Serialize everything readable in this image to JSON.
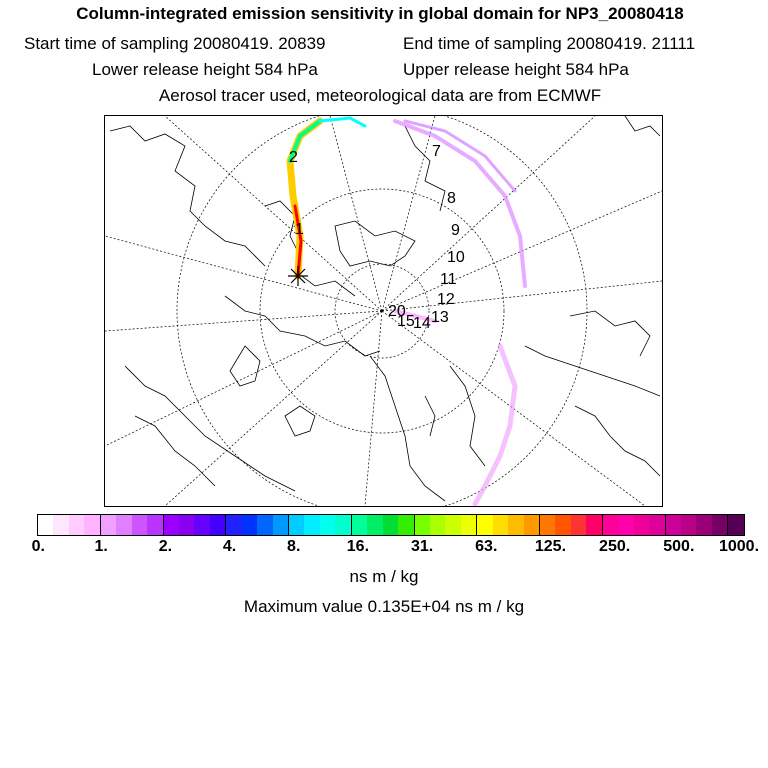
{
  "header": {
    "title": "Column-integrated emission sensitivity in global domain for NP3_20080418",
    "start_time": "Start time of sampling 20080419. 20839",
    "end_time": "End time of sampling 20080419. 21111",
    "lower_height": "Lower release height  584 hPa",
    "upper_height": "Upper release height  584 hPa",
    "tracer_info": "Aerosol tracer used, meteorological data are from ECMWF"
  },
  "map": {
    "projection": "polar stereographic (north)",
    "release_marker": "star",
    "day_labels": [
      "2",
      "1",
      "7",
      "8",
      "9",
      "10",
      "11",
      "12",
      "13",
      "14",
      "15",
      "20"
    ],
    "plume_colors": [
      "#ff00cc",
      "#ff0000",
      "#ffcc00",
      "#00ff88",
      "#00ffff",
      "#cc66ff"
    ]
  },
  "colorbar": {
    "colors": [
      "#ffffff",
      "#ffe6ff",
      "#ffccff",
      "#ffb3ff",
      "#f0a0ff",
      "#e080ff",
      "#cc55ff",
      "#bb33ff",
      "#9900ff",
      "#8800ee",
      "#6600ff",
      "#4400ff",
      "#2222ff",
      "#0033ff",
      "#0066ff",
      "#0099ff",
      "#00ccff",
      "#00eeff",
      "#00ffee",
      "#00ffcc",
      "#00ff99",
      "#00ee66",
      "#00dd33",
      "#33ee00",
      "#77ff00",
      "#aaff00",
      "#ccff00",
      "#eeff00",
      "#ffff00",
      "#ffdd00",
      "#ffbb00",
      "#ff9900",
      "#ff7700",
      "#ff5500",
      "#ff3333",
      "#ff0066",
      "#ff0099",
      "#ff00aa",
      "#ee0099",
      "#dd0099",
      "#cc0099",
      "#bb0088",
      "#990077",
      "#770066",
      "#550055"
    ],
    "tick_labels": [
      "0.",
      "1.",
      "2.",
      "4.",
      "8.",
      "16.",
      "31.",
      "63.",
      "125.",
      "250.",
      "500.",
      "1000."
    ],
    "units": "ns m / kg",
    "max_value": "Maximum value  0.135E+04 ns m / kg"
  }
}
